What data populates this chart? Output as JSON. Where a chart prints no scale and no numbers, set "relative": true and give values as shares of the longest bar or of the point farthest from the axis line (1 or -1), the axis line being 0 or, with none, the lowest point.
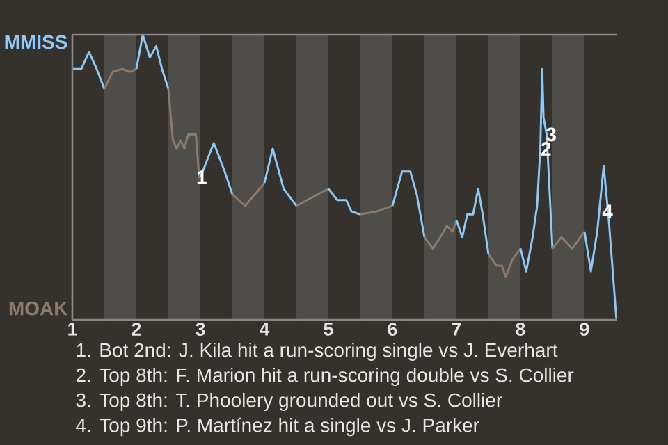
{
  "chart_data": {
    "type": "line",
    "relative": true,
    "xlim": [
      1,
      9.5
    ],
    "xticks": [
      1,
      2,
      3,
      4,
      5,
      6,
      7,
      8,
      9
    ],
    "marker": "none",
    "line_style": "solid",
    "bands": [
      {
        "axis": "x",
        "from": 1.5,
        "to": 2,
        "color": "#4f4d4a"
      },
      {
        "axis": "x",
        "from": 2.5,
        "to": 3,
        "color": "#4f4d4a"
      },
      {
        "axis": "x",
        "from": 3.5,
        "to": 4,
        "color": "#4f4d4a"
      },
      {
        "axis": "x",
        "from": 4.5,
        "to": 5,
        "color": "#4f4d4a"
      },
      {
        "axis": "x",
        "from": 5.5,
        "to": 6,
        "color": "#4f4d4a"
      },
      {
        "axis": "x",
        "from": 6.5,
        "to": 7,
        "color": "#4f4d4a"
      },
      {
        "axis": "x",
        "from": 7.5,
        "to": 8,
        "color": "#4f4d4a"
      },
      {
        "axis": "x",
        "from": 8.5,
        "to": 9,
        "color": "#4f4d4a"
      }
    ],
    "series": [
      {
        "color": "#8ec9f7",
        "x": [
          1,
          1.14,
          1.26,
          1.38,
          1.5
        ],
        "values": [
          0.88,
          0.88,
          0.94,
          0.88,
          0.81
        ]
      },
      {
        "color": "#8c7b6b",
        "x": [
          1.5,
          1.63,
          1.78,
          1.9,
          2
        ],
        "values": [
          0.81,
          0.87,
          0.88,
          0.87,
          0.88
        ]
      },
      {
        "color": "#8ec9f7",
        "x": [
          2,
          2.1,
          2.21,
          2.31,
          2.4,
          2.5
        ],
        "values": [
          0.88,
          1,
          0.92,
          0.96,
          0.88,
          0.81
        ]
      },
      {
        "color": "#8c7b6b",
        "x": [
          2.5,
          2.57,
          2.63,
          2.69,
          2.75,
          2.81,
          2.93,
          2.98,
          3
        ],
        "values": [
          0.81,
          0.63,
          0.6,
          0.63,
          0.6,
          0.65,
          0.65,
          0.5,
          0.5
        ]
      },
      {
        "color": "#8ec9f7",
        "x": [
          3,
          3.21,
          3.38,
          3.5
        ],
        "values": [
          0.5,
          0.62,
          0.52,
          0.44
        ]
      },
      {
        "color": "#8c7b6b",
        "x": [
          3.5,
          3.7,
          4
        ],
        "values": [
          0.44,
          0.4,
          0.48
        ]
      },
      {
        "color": "#8ec9f7",
        "x": [
          4,
          4.13,
          4.3,
          4.5
        ],
        "values": [
          0.48,
          0.6,
          0.46,
          0.4
        ]
      },
      {
        "color": "#8c7b6b",
        "x": [
          4.5,
          5
        ],
        "values": [
          0.4,
          0.46
        ]
      },
      {
        "color": "#8ec9f7",
        "x": [
          5,
          5.14,
          5.28,
          5.36,
          5.5
        ],
        "values": [
          0.46,
          0.42,
          0.42,
          0.38,
          0.37
        ]
      },
      {
        "color": "#8c7b6b",
        "x": [
          5.5,
          5.75,
          6
        ],
        "values": [
          0.37,
          0.38,
          0.4
        ]
      },
      {
        "color": "#8ec9f7",
        "x": [
          6,
          6.15,
          6.28,
          6.38,
          6.5
        ],
        "values": [
          0.4,
          0.52,
          0.52,
          0.44,
          0.29
        ]
      },
      {
        "color": "#8c7b6b",
        "x": [
          6.5,
          6.63,
          6.75,
          6.85,
          6.94,
          7
        ],
        "values": [
          0.29,
          0.25,
          0.29,
          0.33,
          0.31,
          0.35
        ]
      },
      {
        "color": "#8ec9f7",
        "x": [
          7,
          7.09,
          7.17,
          7.26,
          7.34,
          7.41,
          7.5
        ],
        "values": [
          0.35,
          0.29,
          0.37,
          0.37,
          0.46,
          0.37,
          0.23
        ]
      },
      {
        "color": "#8c7b6b",
        "x": [
          7.5,
          7.63,
          7.71,
          7.77,
          7.87,
          8
        ],
        "values": [
          0.23,
          0.19,
          0.19,
          0.15,
          0.21,
          0.25
        ]
      },
      {
        "color": "#8ec9f7",
        "x": [
          8,
          8.09,
          8.19,
          8.26,
          8.31,
          8.34,
          8.36,
          8.41,
          8.5
        ],
        "values": [
          0.25,
          0.17,
          0.29,
          0.4,
          0.6,
          0.88,
          0.71,
          0.65,
          0.25
        ]
      },
      {
        "color": "#8c7b6b",
        "x": [
          8.5,
          8.64,
          8.81,
          9
        ],
        "values": [
          0.25,
          0.29,
          0.25,
          0.31
        ]
      },
      {
        "color": "#8ec9f7",
        "x": [
          9,
          9.1,
          9.2,
          9.3,
          9.38,
          9.5
        ],
        "values": [
          0.31,
          0.17,
          0.31,
          0.54,
          0.35,
          0
        ]
      }
    ],
    "annotations": [
      "MMISS",
      "MOAK",
      {
        "text": "1",
        "x": 3.02,
        "y": 0.5
      },
      {
        "text": "2",
        "x": 8.4,
        "y": 0.6
      },
      {
        "text": "3",
        "x": 8.48,
        "y": 0.65
      },
      {
        "text": "4",
        "x": 9.36,
        "y": 0.38
      },
      "1. Bot 2nd: J. Kila hit a run-scoring single vs J. Everhart",
      "2. Top 8th: F. Marion hit a run-scoring double vs S. Collier",
      "3. Top 8th: T. Phoolery grounded out vs S. Collier",
      "4. Top 9th: P. Martínez hit a single vs J. Parker"
    ]
  }
}
